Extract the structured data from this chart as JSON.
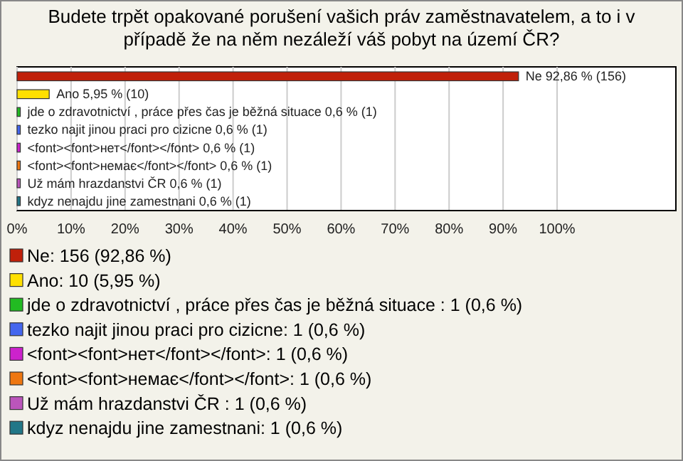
{
  "chart_data": {
    "type": "bar",
    "orientation": "horizontal",
    "title": "Budete trpět opakované porušení vašich práv zaměstnavatelem, a to i v případě že na něm nezáleží váš pobyt na území ČR?",
    "categories": [
      null,
      null,
      null,
      null,
      null,
      null,
      null,
      null
    ],
    "series": [
      {
        "name": "Ne: 156 (92,86 %)",
        "color": "#c0200a",
        "values": [
          92.86,
          null,
          null,
          null,
          null,
          null,
          null,
          null
        ],
        "value_labels": [
          "Ne 92,86 % (156)",
          null,
          null,
          null,
          null,
          null,
          null,
          null
        ]
      },
      {
        "name": "Ano: 10 (5,95 %)",
        "color": "#ffe000",
        "values": [
          null,
          5.95,
          null,
          null,
          null,
          null,
          null,
          null
        ],
        "value_labels": [
          null,
          "Ano 5,95 % (10)",
          null,
          null,
          null,
          null,
          null,
          null
        ]
      },
      {
        "name": "jde o zdravotnictví , práce přes čas je běžná situace : 1 (0,6 %)",
        "color": "#22bb22",
        "values": [
          null,
          null,
          0.6,
          null,
          null,
          null,
          null,
          null
        ],
        "value_labels": [
          null,
          null,
          "jde o zdravotnictví , práce přes čas je běžná situace  0,6 % (1)",
          null,
          null,
          null,
          null,
          null
        ]
      },
      {
        "name": "tezko najit jinou praci pro cizicne: 1 (0,6 %)",
        "color": "#4466ee",
        "values": [
          null,
          null,
          null,
          0.6,
          null,
          null,
          null,
          null
        ],
        "value_labels": [
          null,
          null,
          null,
          "tezko najit jinou praci pro cizicne 0,6 % (1)",
          null,
          null,
          null,
          null
        ]
      },
      {
        "name": "<font><font>нет</font></font>: 1 (0,6 %)",
        "color": "#cc22cc",
        "values": [
          null,
          null,
          null,
          null,
          0.6,
          null,
          null,
          null
        ],
        "value_labels": [
          null,
          null,
          null,
          null,
          "<font><font>нет</font></font> 0,6 % (1)",
          null,
          null,
          null
        ]
      },
      {
        "name": "<font><font>немає</font></font>: 1 (0,6 %)",
        "color": "#ee7711",
        "values": [
          null,
          null,
          null,
          null,
          null,
          0.6,
          null,
          null
        ],
        "value_labels": [
          null,
          null,
          null,
          null,
          null,
          "<font><font>немає</font></font> 0,6 % (1)",
          null,
          null
        ]
      },
      {
        "name": "Už mám hrazdanstvi ČR : 1 (0,6 %)",
        "color": "#bb55bb",
        "values": [
          null,
          null,
          null,
          null,
          null,
          null,
          0.6,
          null
        ],
        "value_labels": [
          null,
          null,
          null,
          null,
          null,
          null,
          "Už mám hrazdanstvi ČR  0,6 % (1)",
          null
        ]
      },
      {
        "name": "kdyz nenajdu jine zamestnani: 1 (0,6 %)",
        "color": "#227788",
        "values": [
          null,
          null,
          null,
          null,
          null,
          null,
          null,
          0.6
        ],
        "value_labels": [
          null,
          null,
          null,
          null,
          null,
          null,
          null,
          "kdyz nenajdu jine zamestnani 0,6 % (1)"
        ]
      }
    ],
    "xlim": [
      0,
      122
    ],
    "xticks": [
      {
        "value": 0,
        "label": "0%"
      },
      {
        "value": 10,
        "label": "10%"
      },
      {
        "value": 20,
        "label": "20%"
      },
      {
        "value": 30,
        "label": "30%"
      },
      {
        "value": 40,
        "label": "40%"
      },
      {
        "value": 50,
        "label": "50%"
      },
      {
        "value": 60,
        "label": "60%"
      },
      {
        "value": 70,
        "label": "70%"
      },
      {
        "value": 80,
        "label": "80%"
      },
      {
        "value": 90,
        "label": "90%"
      },
      {
        "value": 100,
        "label": "100%"
      }
    ],
    "grid": "x",
    "legend": "bottom",
    "tick_labels": "x"
  }
}
